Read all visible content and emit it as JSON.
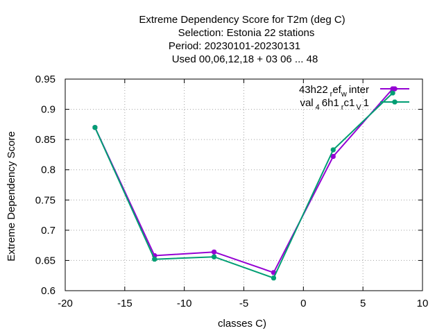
{
  "chart_data": {
    "type": "line",
    "title_lines": [
      "Extreme Dependency Score  for T2m (deg C)",
      "Selection: Estonia      22 stations",
      "Period: 20230101-20230131",
      "Used  00,06,12,18  + 03 06 ... 48"
    ],
    "xlabel": "classes C)",
    "ylabel": "Extreme Dependency Score",
    "xlim": [
      -20,
      10
    ],
    "ylim": [
      0.6,
      0.95
    ],
    "xticks": [
      -20,
      -15,
      -10,
      -5,
      0,
      5,
      10
    ],
    "yticks": [
      0.6,
      0.65,
      0.7,
      0.75,
      0.8,
      0.85,
      0.9,
      0.95
    ],
    "xtick_labels": [
      "-20",
      "-15",
      "-10",
      "-5",
      "0",
      "5",
      "10"
    ],
    "ytick_labels": [
      "0.6",
      "0.65",
      "0.7",
      "0.75",
      "0.8",
      "0.85",
      "0.9",
      "0.95"
    ],
    "grid": true,
    "legend_position": "top-right",
    "series": [
      {
        "name_parts": [
          "43h22",
          "r",
          "ef",
          "w",
          "inter"
        ],
        "color": "#9400d3",
        "x": [
          -17.5,
          -12.5,
          -7.5,
          -2.5,
          2.5,
          7.5
        ],
        "y": [
          0.87,
          0.658,
          0.664,
          0.63,
          0.822,
          0.934
        ]
      },
      {
        "name_parts": [
          "val",
          "4",
          "6h1",
          "r",
          "c1",
          "V",
          "1"
        ],
        "color": "#009e73",
        "x": [
          -17.5,
          -12.5,
          -7.5,
          -2.5,
          2.5,
          7.5
        ],
        "y": [
          0.87,
          0.652,
          0.656,
          0.621,
          0.833,
          0.927
        ]
      }
    ]
  }
}
